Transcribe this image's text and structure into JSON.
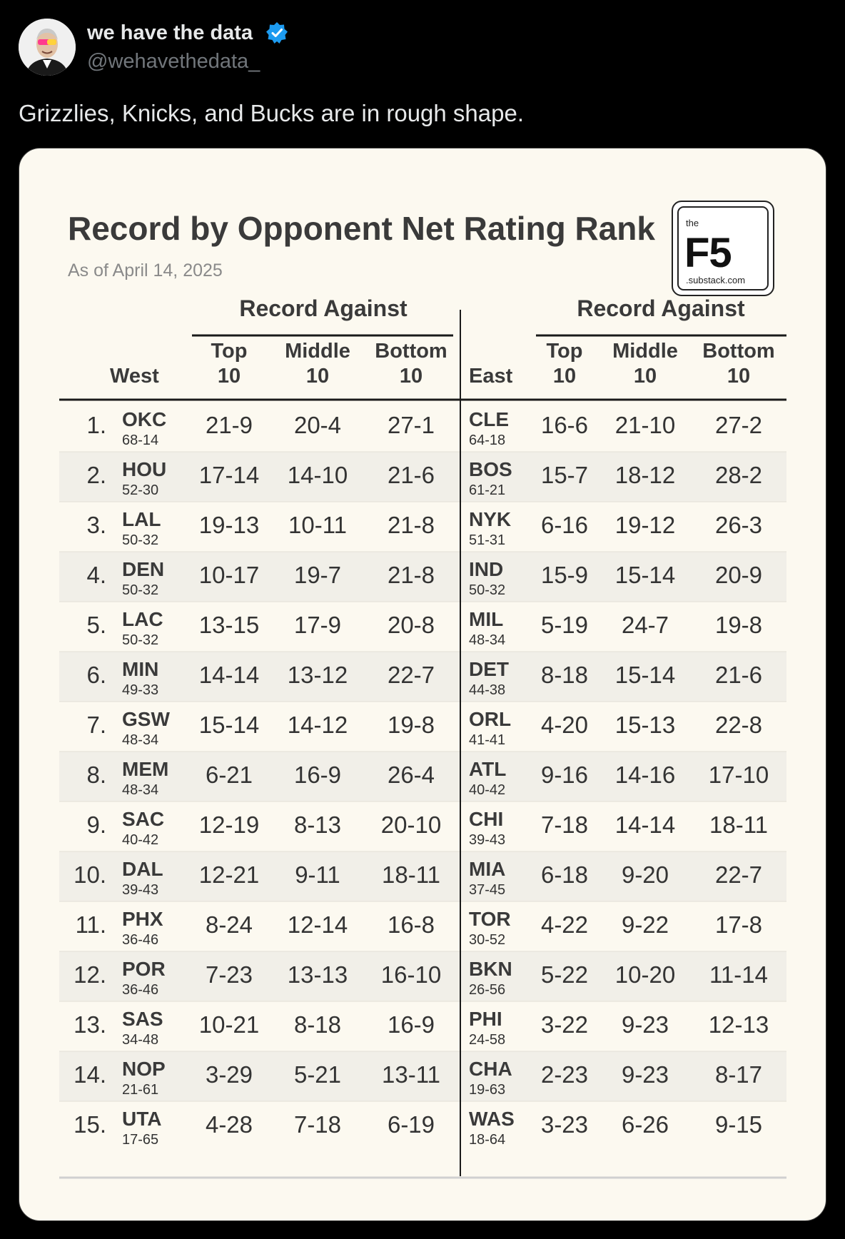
{
  "tweet": {
    "author_name": "we have the data",
    "author_handle": "@wehavethedata_",
    "text": "Grizzlies, Knicks, and Bucks are in rough shape."
  },
  "card": {
    "title": "Record by Opponent Net Rating Rank",
    "subtitle": "As of April 14, 2025",
    "logo": {
      "the": "the",
      "main": "F5",
      "url": ".substack.com"
    },
    "header": {
      "group_label": "Record Against",
      "west_label": "West",
      "east_label": "East",
      "col_top": [
        "Top",
        "10"
      ],
      "col_middle": [
        "Middle",
        "10"
      ],
      "col_bottom": [
        "Bottom",
        "10"
      ]
    },
    "colors": {
      "background": "#fcf9f0",
      "stripe": "#f1efe8",
      "text": "#333333"
    }
  },
  "chart_data": {
    "type": "table",
    "title": "Record by Opponent Net Rating Rank",
    "subtitle": "As of April 14, 2025",
    "columns": [
      "Top 10",
      "Middle 10",
      "Bottom 10"
    ],
    "west": [
      {
        "rank": "1.",
        "team": "OKC",
        "record": "68-14",
        "top": "21-9",
        "middle": "20-4",
        "bottom": "27-1"
      },
      {
        "rank": "2.",
        "team": "HOU",
        "record": "52-30",
        "top": "17-14",
        "middle": "14-10",
        "bottom": "21-6"
      },
      {
        "rank": "3.",
        "team": "LAL",
        "record": "50-32",
        "top": "19-13",
        "middle": "10-11",
        "bottom": "21-8"
      },
      {
        "rank": "4.",
        "team": "DEN",
        "record": "50-32",
        "top": "10-17",
        "middle": "19-7",
        "bottom": "21-8"
      },
      {
        "rank": "5.",
        "team": "LAC",
        "record": "50-32",
        "top": "13-15",
        "middle": "17-9",
        "bottom": "20-8"
      },
      {
        "rank": "6.",
        "team": "MIN",
        "record": "49-33",
        "top": "14-14",
        "middle": "13-12",
        "bottom": "22-7"
      },
      {
        "rank": "7.",
        "team": "GSW",
        "record": "48-34",
        "top": "15-14",
        "middle": "14-12",
        "bottom": "19-8"
      },
      {
        "rank": "8.",
        "team": "MEM",
        "record": "48-34",
        "top": "6-21",
        "middle": "16-9",
        "bottom": "26-4"
      },
      {
        "rank": "9.",
        "team": "SAC",
        "record": "40-42",
        "top": "12-19",
        "middle": "8-13",
        "bottom": "20-10"
      },
      {
        "rank": "10.",
        "team": "DAL",
        "record": "39-43",
        "top": "12-21",
        "middle": "9-11",
        "bottom": "18-11"
      },
      {
        "rank": "11.",
        "team": "PHX",
        "record": "36-46",
        "top": "8-24",
        "middle": "12-14",
        "bottom": "16-8"
      },
      {
        "rank": "12.",
        "team": "POR",
        "record": "36-46",
        "top": "7-23",
        "middle": "13-13",
        "bottom": "16-10"
      },
      {
        "rank": "13.",
        "team": "SAS",
        "record": "34-48",
        "top": "10-21",
        "middle": "8-18",
        "bottom": "16-9"
      },
      {
        "rank": "14.",
        "team": "NOP",
        "record": "21-61",
        "top": "3-29",
        "middle": "5-21",
        "bottom": "13-11"
      },
      {
        "rank": "15.",
        "team": "UTA",
        "record": "17-65",
        "top": "4-28",
        "middle": "7-18",
        "bottom": "6-19"
      }
    ],
    "east": [
      {
        "team": "CLE",
        "record": "64-18",
        "top": "16-6",
        "middle": "21-10",
        "bottom": "27-2"
      },
      {
        "team": "BOS",
        "record": "61-21",
        "top": "15-7",
        "middle": "18-12",
        "bottom": "28-2"
      },
      {
        "team": "NYK",
        "record": "51-31",
        "top": "6-16",
        "middle": "19-12",
        "bottom": "26-3"
      },
      {
        "team": "IND",
        "record": "50-32",
        "top": "15-9",
        "middle": "15-14",
        "bottom": "20-9"
      },
      {
        "team": "MIL",
        "record": "48-34",
        "top": "5-19",
        "middle": "24-7",
        "bottom": "19-8"
      },
      {
        "team": "DET",
        "record": "44-38",
        "top": "8-18",
        "middle": "15-14",
        "bottom": "21-6"
      },
      {
        "team": "ORL",
        "record": "41-41",
        "top": "4-20",
        "middle": "15-13",
        "bottom": "22-8"
      },
      {
        "team": "ATL",
        "record": "40-42",
        "top": "9-16",
        "middle": "14-16",
        "bottom": "17-10"
      },
      {
        "team": "CHI",
        "record": "39-43",
        "top": "7-18",
        "middle": "14-14",
        "bottom": "18-11"
      },
      {
        "team": "MIA",
        "record": "37-45",
        "top": "6-18",
        "middle": "9-20",
        "bottom": "22-7"
      },
      {
        "team": "TOR",
        "record": "30-52",
        "top": "4-22",
        "middle": "9-22",
        "bottom": "17-8"
      },
      {
        "team": "BKN",
        "record": "26-56",
        "top": "5-22",
        "middle": "10-20",
        "bottom": "11-14"
      },
      {
        "team": "PHI",
        "record": "24-58",
        "top": "3-22",
        "middle": "9-23",
        "bottom": "12-13"
      },
      {
        "team": "CHA",
        "record": "19-63",
        "top": "2-23",
        "middle": "9-23",
        "bottom": "8-17"
      },
      {
        "team": "WAS",
        "record": "18-64",
        "top": "3-23",
        "middle": "6-26",
        "bottom": "9-15"
      }
    ]
  }
}
